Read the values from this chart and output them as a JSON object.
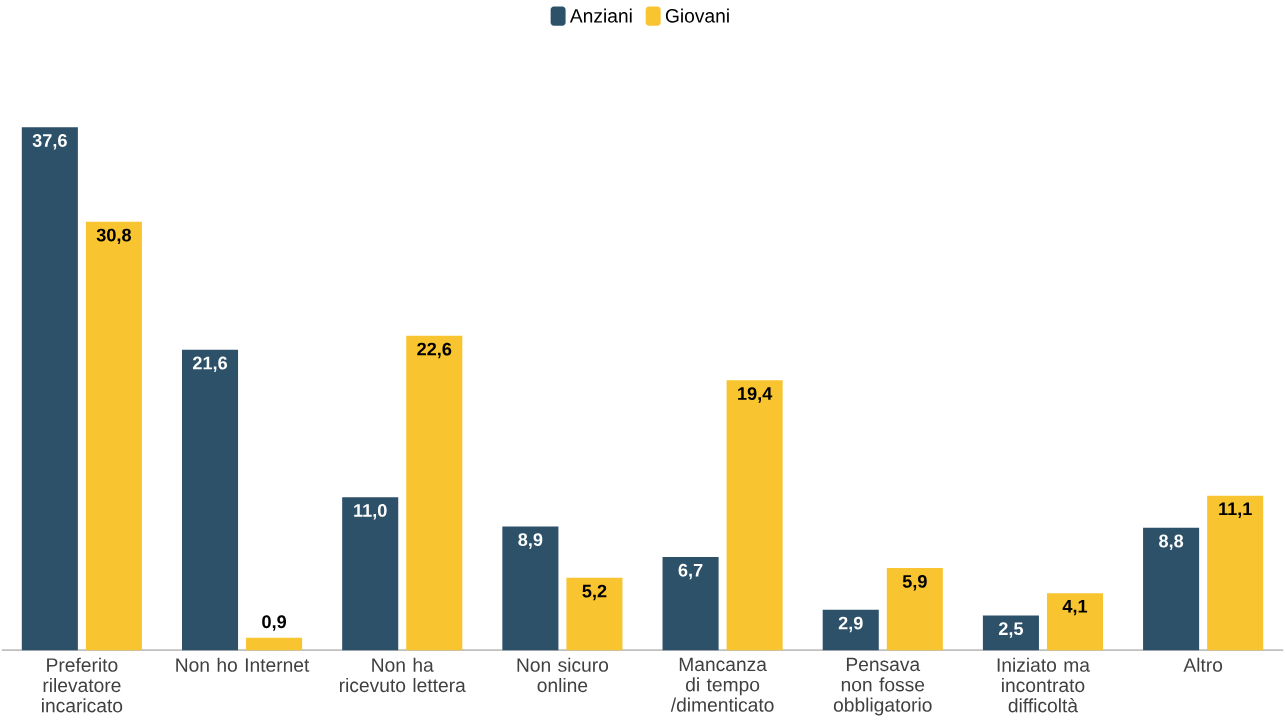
{
  "chart_data": {
    "type": "bar",
    "categories": [
      "Preferito rilevatore incaricato",
      "Non ho Internet",
      "Non ha ricevuto lettera",
      "Non sicuro online",
      "Mancanza di tempo /dimenticato",
      "Pensava non fosse obbligatorio",
      "Iniziato ma incontrato difficoltà",
      "Altro"
    ],
    "series": [
      {
        "name": "Anziani",
        "color": "#2c5168",
        "values": [
          37.6,
          21.6,
          11.0,
          8.9,
          6.7,
          2.9,
          2.5,
          8.8
        ],
        "value_labels": [
          "37,6",
          "21,6",
          "11,0",
          "8,9",
          "6,7",
          "2,9",
          "2,5",
          "8,8"
        ]
      },
      {
        "name": "Giovani",
        "color": "#f8c42f",
        "values": [
          30.8,
          0.9,
          22.6,
          5.2,
          19.4,
          5.9,
          4.1,
          11.1
        ],
        "value_labels": [
          "30,8",
          "0,9",
          "22,6",
          "5,2",
          "19,4",
          "5,9",
          "4,1",
          "11,1"
        ]
      }
    ],
    "legend": "top"
  }
}
